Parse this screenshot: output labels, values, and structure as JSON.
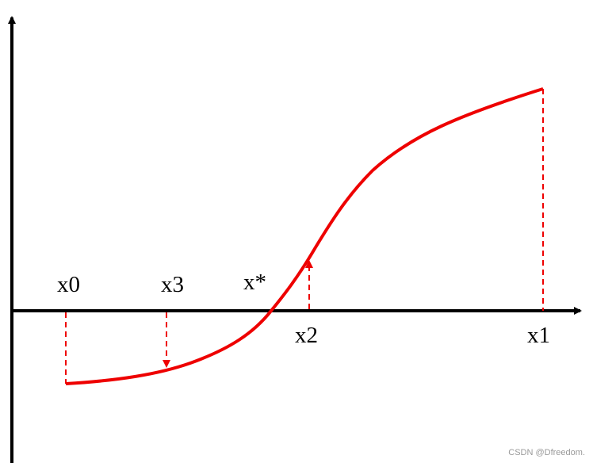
{
  "nodes": [
    {
      "label": "x0"
    },
    {
      "label": "x3"
    },
    {
      "label": "x*"
    },
    {
      "label": "x2"
    },
    {
      "label": "x1"
    }
  ],
  "watermark": "CSDN @Dfreedom."
}
